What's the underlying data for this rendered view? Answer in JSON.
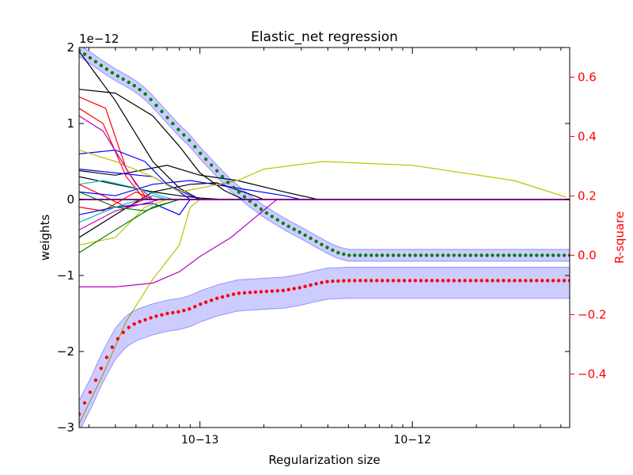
{
  "chart_data": {
    "type": "line",
    "title": "Elastic_net regression",
    "xlabel": "Regularization size",
    "ylabel": "weights",
    "ylabel_right": "R-square",
    "x_scale": "log",
    "xlim": [
      2.7e-14,
      5.5e-12
    ],
    "x_ticks": [
      {
        "value": 1e-13,
        "label": "10−13"
      },
      {
        "value": 1e-12,
        "label": "10−12"
      }
    ],
    "ylim_left": [
      -3,
      2
    ],
    "y_offset_label": "1e−12",
    "y_left_ticks": [
      2,
      1,
      0,
      -1,
      -2,
      -3
    ],
    "y_left_tick_labels": [
      "2",
      "1",
      "0",
      "−1",
      "−2",
      "−3"
    ],
    "ylim_right": [
      -0.58,
      0.7
    ],
    "y_right_ticks": [
      0.6,
      0.4,
      0.2,
      0.0,
      -0.2,
      -0.4
    ],
    "y_right_tick_labels": [
      "0.6",
      "0.4",
      "0.2",
      "0.0",
      "−0.2",
      "−0.4"
    ],
    "right_axis_color": "#ff0000",
    "grid": false,
    "legend": "none",
    "r2_series": [
      {
        "marker_color": "#008000",
        "band_color": "#0000ff",
        "points": [
          [
            2.7e-14,
            0.69
          ],
          [
            3e-14,
            0.668
          ],
          [
            3.5e-14,
            0.635
          ],
          [
            4e-14,
            0.608
          ],
          [
            4.5e-14,
            0.588
          ],
          [
            5e-14,
            0.568
          ],
          [
            5.5e-14,
            0.545
          ],
          [
            6e-14,
            0.518
          ],
          [
            7e-14,
            0.465
          ],
          [
            8e-14,
            0.42
          ],
          [
            9e-14,
            0.385
          ],
          [
            1e-13,
            0.345
          ],
          [
            1.2e-13,
            0.285
          ],
          [
            1.4e-13,
            0.235
          ],
          [
            1.7e-13,
            0.185
          ],
          [
            2e-13,
            0.148
          ],
          [
            2.5e-13,
            0.105
          ],
          [
            3e-13,
            0.075
          ],
          [
            3.5e-13,
            0.048
          ],
          [
            4e-13,
            0.025
          ],
          [
            4.5e-13,
            0.008
          ],
          [
            5e-13,
            0.0
          ],
          [
            5.5e-12,
            0.0
          ]
        ],
        "band_halfwidth": 0.02
      },
      {
        "marker_color": "#ff0000",
        "band_color": "#0000ff",
        "points": [
          [
            2.7e-14,
            -0.535
          ],
          [
            2.9e-14,
            -0.49
          ],
          [
            3.1e-14,
            -0.45
          ],
          [
            3.3e-14,
            -0.405
          ],
          [
            3.6e-14,
            -0.35
          ],
          [
            4e-14,
            -0.29
          ],
          [
            4.5e-14,
            -0.248
          ],
          [
            5e-14,
            -0.228
          ],
          [
            6e-14,
            -0.208
          ],
          [
            7e-14,
            -0.196
          ],
          [
            8e-14,
            -0.19
          ],
          [
            9e-14,
            -0.18
          ],
          [
            1e-13,
            -0.165
          ],
          [
            1.2e-13,
            -0.145
          ],
          [
            1.5e-13,
            -0.128
          ],
          [
            2e-13,
            -0.122
          ],
          [
            2.5e-13,
            -0.118
          ],
          [
            3e-13,
            -0.108
          ],
          [
            3.5e-13,
            -0.096
          ],
          [
            4e-13,
            -0.088
          ],
          [
            5e-13,
            -0.085
          ],
          [
            5.5e-12,
            -0.085
          ]
        ],
        "band_lower_offset": 0.06,
        "band_upper_offset": 0.045
      }
    ],
    "weight_paths": [
      {
        "color": "#000000",
        "points": [
          [
            2.7e-14,
            1.95
          ],
          [
            4e-14,
            1.3
          ],
          [
            6e-14,
            0.5
          ],
          [
            8e-14,
            0.15
          ],
          [
            1e-13,
            0
          ]
        ]
      },
      {
        "color": "#000000",
        "points": [
          [
            2.7e-14,
            1.45
          ],
          [
            4e-14,
            1.4
          ],
          [
            6e-14,
            1.1
          ],
          [
            8e-14,
            0.7
          ],
          [
            1e-13,
            0.35
          ],
          [
            1.3e-13,
            0.12
          ],
          [
            1.6e-13,
            0
          ]
        ]
      },
      {
        "color": "#000000",
        "points": [
          [
            2.7e-14,
            0.38
          ],
          [
            4e-14,
            0.32
          ],
          [
            7e-14,
            0.45
          ],
          [
            1e-13,
            0.32
          ],
          [
            1.5e-13,
            0.25
          ],
          [
            2.5e-13,
            0.1
          ],
          [
            3.6e-13,
            0
          ]
        ]
      },
      {
        "color": "#000000",
        "points": [
          [
            2.7e-14,
            0.3
          ],
          [
            4e-14,
            0.2
          ],
          [
            6e-14,
            0.1
          ],
          [
            8e-14,
            0.05
          ],
          [
            1e-13,
            0.02
          ],
          [
            1.3e-13,
            0
          ]
        ]
      },
      {
        "color": "#000000",
        "points": [
          [
            2.7e-14,
            -0.5
          ],
          [
            4e-14,
            -0.2
          ],
          [
            6e-14,
            0.1
          ],
          [
            9e-14,
            0.2
          ],
          [
            1.2e-13,
            0.22
          ],
          [
            1.8e-13,
            0.05
          ],
          [
            2e-13,
            0
          ]
        ]
      },
      {
        "color": "#ff0000",
        "points": [
          [
            2.7e-14,
            1.35
          ],
          [
            3.6e-14,
            1.2
          ],
          [
            4.5e-14,
            0.4
          ],
          [
            5.5e-14,
            0.05
          ],
          [
            6e-14,
            0
          ]
        ]
      },
      {
        "color": "#ff0000",
        "points": [
          [
            2.7e-14,
            1.2
          ],
          [
            3.5e-14,
            1.0
          ],
          [
            4.5e-14,
            0.3
          ],
          [
            5.5e-14,
            0
          ]
        ]
      },
      {
        "color": "#ff0000",
        "points": [
          [
            2.7e-14,
            0.2
          ],
          [
            3.5e-14,
            0.05
          ],
          [
            4.5e-14,
            -0.1
          ],
          [
            6e-14,
            0.05
          ],
          [
            7e-14,
            0
          ]
        ]
      },
      {
        "color": "#ff0000",
        "points": [
          [
            2.7e-14,
            -0.1
          ],
          [
            3.5e-14,
            -0.15
          ],
          [
            5e-14,
            0.1
          ],
          [
            6e-14,
            0
          ]
        ]
      },
      {
        "color": "#0000ff",
        "points": [
          [
            2.7e-14,
            0.6
          ],
          [
            4e-14,
            0.65
          ],
          [
            5.5e-14,
            0.5
          ],
          [
            7e-14,
            0.2
          ],
          [
            9e-14,
            0.05
          ],
          [
            1e-13,
            0
          ]
        ]
      },
      {
        "color": "#0000ff",
        "points": [
          [
            2.7e-14,
            0.4
          ],
          [
            4e-14,
            0.35
          ],
          [
            6e-14,
            0.3
          ],
          [
            8e-14,
            0.1
          ],
          [
            9e-14,
            0
          ]
        ]
      },
      {
        "color": "#0000ff",
        "points": [
          [
            2.7e-14,
            -0.2
          ],
          [
            4e-14,
            -0.1
          ],
          [
            6e-14,
            -0.05
          ],
          [
            8e-14,
            -0.2
          ],
          [
            9e-14,
            0
          ]
        ]
      },
      {
        "color": "#0000ff",
        "points": [
          [
            2.7e-14,
            0.1
          ],
          [
            4e-14,
            0.05
          ],
          [
            6e-14,
            0.2
          ],
          [
            9e-14,
            0.25
          ],
          [
            1.5e-13,
            0.15
          ],
          [
            2.5e-13,
            0.05
          ],
          [
            3e-13,
            0
          ]
        ]
      },
      {
        "color": "#bfbf00",
        "points": [
          [
            2.7e-14,
            -2.95
          ],
          [
            3.5e-14,
            -2.3
          ],
          [
            4.5e-14,
            -1.6
          ],
          [
            6e-14,
            -1.05
          ],
          [
            8e-14,
            -0.6
          ],
          [
            9e-14,
            -0.1
          ],
          [
            1e-13,
            0
          ]
        ]
      },
      {
        "color": "#bfbf00",
        "points": [
          [
            2.7e-14,
            0.65
          ],
          [
            4e-14,
            0.5
          ],
          [
            6e-14,
            0.3
          ],
          [
            8e-14,
            0.1
          ],
          [
            1e-13,
            0.15
          ],
          [
            1.5e-13,
            0.25
          ],
          [
            2e-13,
            0.4
          ],
          [
            3.8e-13,
            0.5
          ],
          [
            1e-12,
            0.45
          ],
          [
            3e-12,
            0.25
          ],
          [
            5.3e-12,
            0.03
          ]
        ]
      },
      {
        "color": "#bfbf00",
        "points": [
          [
            2.7e-14,
            -0.6
          ],
          [
            4e-14,
            -0.5
          ],
          [
            5.5e-14,
            -0.1
          ],
          [
            7e-14,
            0
          ]
        ]
      },
      {
        "color": "#bf00bf",
        "points": [
          [
            2.7e-14,
            -1.15
          ],
          [
            4e-14,
            -1.15
          ],
          [
            6e-14,
            -1.1
          ],
          [
            8e-14,
            -0.95
          ],
          [
            1e-13,
            -0.75
          ],
          [
            1.4e-13,
            -0.5
          ],
          [
            2.3e-13,
            0
          ]
        ]
      },
      {
        "color": "#bf00bf",
        "points": [
          [
            2.7e-14,
            1.1
          ],
          [
            3.5e-14,
            0.9
          ],
          [
            5e-14,
            0.2
          ],
          [
            6e-14,
            0
          ]
        ]
      },
      {
        "color": "#bf00bf",
        "points": [
          [
            2.7e-14,
            -0.4
          ],
          [
            4e-14,
            -0.15
          ],
          [
            5.5e-14,
            -0.05
          ],
          [
            6.5e-14,
            0
          ]
        ]
      },
      {
        "color": "#00bfbf",
        "points": [
          [
            2.7e-14,
            0.2
          ],
          [
            3.5e-14,
            0.25
          ],
          [
            5e-14,
            0.15
          ],
          [
            6.5e-14,
            0.05
          ],
          [
            7.5e-14,
            0
          ]
        ]
      },
      {
        "color": "#00bfbf",
        "points": [
          [
            2.7e-14,
            -0.3
          ],
          [
            4e-14,
            -0.1
          ],
          [
            6e-14,
            0.05
          ],
          [
            7e-14,
            0
          ]
        ]
      },
      {
        "color": "#008000",
        "points": [
          [
            2.7e-14,
            0.1
          ],
          [
            4e-14,
            -0.1
          ],
          [
            5.5e-14,
            -0.15
          ],
          [
            7e-14,
            -0.05
          ],
          [
            8e-14,
            0
          ]
        ]
      },
      {
        "color": "#008000",
        "points": [
          [
            2.7e-14,
            -0.7
          ],
          [
            4e-14,
            -0.4
          ],
          [
            6e-14,
            -0.1
          ],
          [
            8e-14,
            0
          ]
        ]
      }
    ]
  }
}
